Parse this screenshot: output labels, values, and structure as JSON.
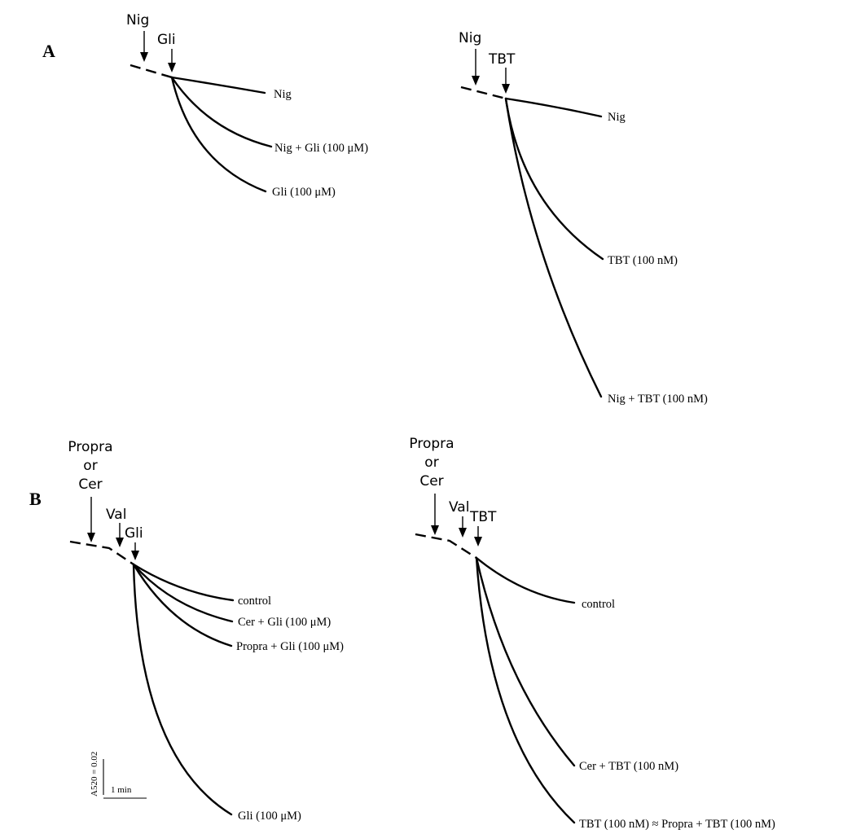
{
  "panels": {
    "A": {
      "letter": "A",
      "left": {
        "additions": [
          "Nig",
          "Gli"
        ],
        "traces": [
          "Nig",
          "Nig + Gli (100 μM)",
          "Gli (100 μM)"
        ]
      },
      "right": {
        "additions": [
          "Nig",
          "TBT"
        ],
        "traces": [
          "Nig",
          "TBT (100 nM)",
          "Nig + TBT (100 nM)"
        ]
      }
    },
    "B": {
      "letter": "B",
      "left": {
        "additions": [
          "Propra",
          "or",
          "Cer",
          "Val",
          "Gli"
        ],
        "traces": [
          "control",
          "Cer + Gli (100 μM)",
          "Propra + Gli (100 μM)",
          "Gli (100 μM)"
        ]
      },
      "right": {
        "additions": [
          "Propra",
          "or",
          "Cer",
          "Val",
          "TBT"
        ],
        "traces": [
          "control",
          "Cer + TBT (100 nM)",
          "TBT (100 nM) ≈ Propra + TBT (100 nM)"
        ]
      }
    }
  },
  "scale_bar": {
    "vertical": "A520 = 0.02",
    "horizontal": "1 min"
  }
}
